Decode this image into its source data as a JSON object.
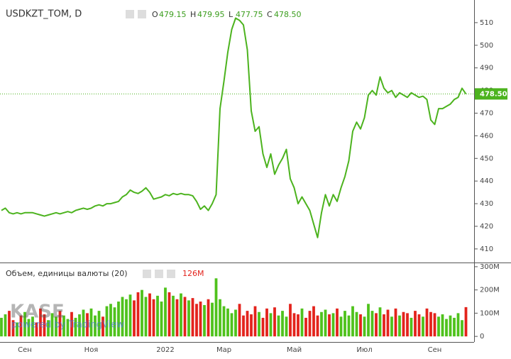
{
  "chart_data": [
    {
      "type": "line",
      "title": "USDKZT_TOM, D",
      "color": "#4cb31e",
      "ohlc": [
        {
          "key": "O",
          "value": "479.15"
        },
        {
          "key": "H",
          "value": "479.95"
        },
        {
          "key": "L",
          "value": "477.75"
        },
        {
          "key": "C",
          "value": "478.50"
        }
      ],
      "last_price": {
        "value": 478.5,
        "label": "478.50"
      },
      "categories": [
        null,
        null,
        null,
        null,
        null,
        null,
        "Сен",
        null,
        null,
        null,
        null,
        null,
        null,
        null,
        null,
        null,
        null,
        null,
        null,
        null,
        null,
        null,
        null,
        "Ноя",
        null,
        null,
        null,
        null,
        null,
        null,
        null,
        null,
        null,
        null,
        null,
        null,
        null,
        null,
        null,
        null,
        null,
        null,
        "2022",
        null,
        null,
        null,
        null,
        null,
        null,
        null,
        null,
        null,
        null,
        null,
        null,
        null,
        null,
        "Мар",
        null,
        null,
        null,
        null,
        null,
        null,
        null,
        null,
        null,
        null,
        null,
        null,
        null,
        null,
        null,
        null,
        null,
        "Май",
        null,
        null,
        null,
        null,
        null,
        null,
        null,
        null,
        null,
        null,
        null,
        null,
        null,
        null,
        null,
        null,
        null,
        "Июл",
        null,
        null,
        null,
        null,
        null,
        null,
        null,
        null,
        null,
        null,
        null,
        null,
        null,
        null,
        null,
        null,
        null,
        "Сен",
        null,
        null,
        null,
        null,
        null,
        null,
        null,
        null
      ],
      "values": [
        427,
        428,
        426,
        425.5,
        426,
        425.5,
        426,
        426,
        426,
        425.5,
        425,
        424.5,
        425,
        425.5,
        426,
        425.5,
        426,
        426.5,
        426,
        427,
        427.5,
        428,
        427.5,
        428,
        429,
        429.5,
        429,
        430,
        430,
        430.5,
        431,
        433,
        434,
        436,
        435,
        434.5,
        435.5,
        437,
        435,
        432,
        432.5,
        433,
        434,
        433.5,
        434.5,
        434,
        434.5,
        434,
        434,
        433.5,
        431,
        427.5,
        429,
        427,
        430,
        434,
        472,
        484,
        497,
        507,
        512,
        511,
        509,
        498,
        471,
        462,
        464,
        452,
        446,
        452,
        443,
        447,
        450,
        454,
        441,
        437,
        430,
        433,
        430,
        427,
        421,
        415,
        426,
        434,
        429,
        434,
        431,
        437,
        442,
        449,
        462,
        466,
        463,
        468,
        478,
        480,
        478,
        486,
        481,
        479,
        480,
        477,
        479,
        478,
        477,
        479,
        478,
        477,
        477.5,
        476,
        467,
        465,
        472,
        472,
        473,
        474,
        476,
        477,
        481,
        478.5
      ],
      "ylim": [
        404,
        520
      ],
      "yticks": [
        410,
        420,
        430,
        440,
        450,
        460,
        470,
        480,
        490,
        500,
        510
      ]
    },
    {
      "type": "bar",
      "title": "Объем, единицы валюты (20)",
      "last_label": "126M",
      "up_color": "#4fc21c",
      "down_color": "#e3231c",
      "values": [
        80,
        95,
        110,
        70,
        60,
        90,
        105,
        75,
        85,
        60,
        120,
        95,
        70,
        100,
        85,
        110,
        90,
        75,
        105,
        80,
        95,
        115,
        100,
        120,
        90,
        110,
        85,
        130,
        140,
        125,
        150,
        170,
        160,
        180,
        155,
        190,
        200,
        170,
        185,
        160,
        175,
        150,
        210,
        190,
        175,
        160,
        185,
        170,
        155,
        165,
        140,
        150,
        135,
        160,
        145,
        250,
        160,
        130,
        120,
        100,
        115,
        140,
        90,
        110,
        95,
        130,
        105,
        80,
        120,
        100,
        125,
        90,
        110,
        85,
        140,
        100,
        95,
        120,
        80,
        110,
        130,
        90,
        105,
        115,
        95,
        100,
        120,
        85,
        110,
        90,
        130,
        105,
        95,
        85,
        140,
        110,
        100,
        125,
        95,
        115,
        85,
        120,
        90,
        105,
        100,
        80,
        110,
        95,
        85,
        120,
        105,
        100,
        85,
        95,
        75,
        90,
        80,
        100,
        70,
        126
      ],
      "ylim": [
        -24,
        315
      ],
      "yticks": [
        0,
        {
          "value": 100,
          "label": "100M"
        },
        {
          "value": 200,
          "label": "200M"
        },
        {
          "value": 300,
          "label": "300M"
        }
      ]
    }
  ],
  "watermark": {
    "logo": "KASE",
    "text": "powered by TradingView"
  }
}
